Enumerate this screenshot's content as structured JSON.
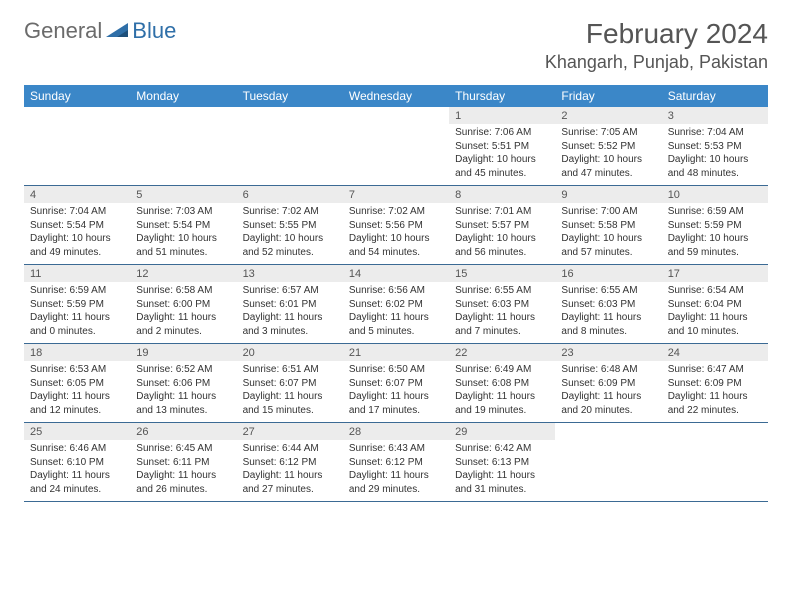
{
  "brand": {
    "part1": "General",
    "part2": "Blue"
  },
  "title": "February 2024",
  "location": "Khangarh, Punjab, Pakistan",
  "colors": {
    "header_bg": "#3b87c8",
    "header_text": "#ffffff",
    "row_border": "#3b6a94",
    "daynum_bg": "#ececec",
    "brand_gray": "#6b6b6b",
    "brand_blue": "#2f6fa8"
  },
  "daysOfWeek": [
    "Sunday",
    "Monday",
    "Tuesday",
    "Wednesday",
    "Thursday",
    "Friday",
    "Saturday"
  ],
  "weeks": [
    [
      {
        "n": "",
        "sr": "",
        "ss": "",
        "dl1": "",
        "dl2": ""
      },
      {
        "n": "",
        "sr": "",
        "ss": "",
        "dl1": "",
        "dl2": ""
      },
      {
        "n": "",
        "sr": "",
        "ss": "",
        "dl1": "",
        "dl2": ""
      },
      {
        "n": "",
        "sr": "",
        "ss": "",
        "dl1": "",
        "dl2": ""
      },
      {
        "n": "1",
        "sr": "Sunrise: 7:06 AM",
        "ss": "Sunset: 5:51 PM",
        "dl1": "Daylight: 10 hours",
        "dl2": "and 45 minutes."
      },
      {
        "n": "2",
        "sr": "Sunrise: 7:05 AM",
        "ss": "Sunset: 5:52 PM",
        "dl1": "Daylight: 10 hours",
        "dl2": "and 47 minutes."
      },
      {
        "n": "3",
        "sr": "Sunrise: 7:04 AM",
        "ss": "Sunset: 5:53 PM",
        "dl1": "Daylight: 10 hours",
        "dl2": "and 48 minutes."
      }
    ],
    [
      {
        "n": "4",
        "sr": "Sunrise: 7:04 AM",
        "ss": "Sunset: 5:54 PM",
        "dl1": "Daylight: 10 hours",
        "dl2": "and 49 minutes."
      },
      {
        "n": "5",
        "sr": "Sunrise: 7:03 AM",
        "ss": "Sunset: 5:54 PM",
        "dl1": "Daylight: 10 hours",
        "dl2": "and 51 minutes."
      },
      {
        "n": "6",
        "sr": "Sunrise: 7:02 AM",
        "ss": "Sunset: 5:55 PM",
        "dl1": "Daylight: 10 hours",
        "dl2": "and 52 minutes."
      },
      {
        "n": "7",
        "sr": "Sunrise: 7:02 AM",
        "ss": "Sunset: 5:56 PM",
        "dl1": "Daylight: 10 hours",
        "dl2": "and 54 minutes."
      },
      {
        "n": "8",
        "sr": "Sunrise: 7:01 AM",
        "ss": "Sunset: 5:57 PM",
        "dl1": "Daylight: 10 hours",
        "dl2": "and 56 minutes."
      },
      {
        "n": "9",
        "sr": "Sunrise: 7:00 AM",
        "ss": "Sunset: 5:58 PM",
        "dl1": "Daylight: 10 hours",
        "dl2": "and 57 minutes."
      },
      {
        "n": "10",
        "sr": "Sunrise: 6:59 AM",
        "ss": "Sunset: 5:59 PM",
        "dl1": "Daylight: 10 hours",
        "dl2": "and 59 minutes."
      }
    ],
    [
      {
        "n": "11",
        "sr": "Sunrise: 6:59 AM",
        "ss": "Sunset: 5:59 PM",
        "dl1": "Daylight: 11 hours",
        "dl2": "and 0 minutes."
      },
      {
        "n": "12",
        "sr": "Sunrise: 6:58 AM",
        "ss": "Sunset: 6:00 PM",
        "dl1": "Daylight: 11 hours",
        "dl2": "and 2 minutes."
      },
      {
        "n": "13",
        "sr": "Sunrise: 6:57 AM",
        "ss": "Sunset: 6:01 PM",
        "dl1": "Daylight: 11 hours",
        "dl2": "and 3 minutes."
      },
      {
        "n": "14",
        "sr": "Sunrise: 6:56 AM",
        "ss": "Sunset: 6:02 PM",
        "dl1": "Daylight: 11 hours",
        "dl2": "and 5 minutes."
      },
      {
        "n": "15",
        "sr": "Sunrise: 6:55 AM",
        "ss": "Sunset: 6:03 PM",
        "dl1": "Daylight: 11 hours",
        "dl2": "and 7 minutes."
      },
      {
        "n": "16",
        "sr": "Sunrise: 6:55 AM",
        "ss": "Sunset: 6:03 PM",
        "dl1": "Daylight: 11 hours",
        "dl2": "and 8 minutes."
      },
      {
        "n": "17",
        "sr": "Sunrise: 6:54 AM",
        "ss": "Sunset: 6:04 PM",
        "dl1": "Daylight: 11 hours",
        "dl2": "and 10 minutes."
      }
    ],
    [
      {
        "n": "18",
        "sr": "Sunrise: 6:53 AM",
        "ss": "Sunset: 6:05 PM",
        "dl1": "Daylight: 11 hours",
        "dl2": "and 12 minutes."
      },
      {
        "n": "19",
        "sr": "Sunrise: 6:52 AM",
        "ss": "Sunset: 6:06 PM",
        "dl1": "Daylight: 11 hours",
        "dl2": "and 13 minutes."
      },
      {
        "n": "20",
        "sr": "Sunrise: 6:51 AM",
        "ss": "Sunset: 6:07 PM",
        "dl1": "Daylight: 11 hours",
        "dl2": "and 15 minutes."
      },
      {
        "n": "21",
        "sr": "Sunrise: 6:50 AM",
        "ss": "Sunset: 6:07 PM",
        "dl1": "Daylight: 11 hours",
        "dl2": "and 17 minutes."
      },
      {
        "n": "22",
        "sr": "Sunrise: 6:49 AM",
        "ss": "Sunset: 6:08 PM",
        "dl1": "Daylight: 11 hours",
        "dl2": "and 19 minutes."
      },
      {
        "n": "23",
        "sr": "Sunrise: 6:48 AM",
        "ss": "Sunset: 6:09 PM",
        "dl1": "Daylight: 11 hours",
        "dl2": "and 20 minutes."
      },
      {
        "n": "24",
        "sr": "Sunrise: 6:47 AM",
        "ss": "Sunset: 6:09 PM",
        "dl1": "Daylight: 11 hours",
        "dl2": "and 22 minutes."
      }
    ],
    [
      {
        "n": "25",
        "sr": "Sunrise: 6:46 AM",
        "ss": "Sunset: 6:10 PM",
        "dl1": "Daylight: 11 hours",
        "dl2": "and 24 minutes."
      },
      {
        "n": "26",
        "sr": "Sunrise: 6:45 AM",
        "ss": "Sunset: 6:11 PM",
        "dl1": "Daylight: 11 hours",
        "dl2": "and 26 minutes."
      },
      {
        "n": "27",
        "sr": "Sunrise: 6:44 AM",
        "ss": "Sunset: 6:12 PM",
        "dl1": "Daylight: 11 hours",
        "dl2": "and 27 minutes."
      },
      {
        "n": "28",
        "sr": "Sunrise: 6:43 AM",
        "ss": "Sunset: 6:12 PM",
        "dl1": "Daylight: 11 hours",
        "dl2": "and 29 minutes."
      },
      {
        "n": "29",
        "sr": "Sunrise: 6:42 AM",
        "ss": "Sunset: 6:13 PM",
        "dl1": "Daylight: 11 hours",
        "dl2": "and 31 minutes."
      },
      {
        "n": "",
        "sr": "",
        "ss": "",
        "dl1": "",
        "dl2": ""
      },
      {
        "n": "",
        "sr": "",
        "ss": "",
        "dl1": "",
        "dl2": ""
      }
    ]
  ]
}
